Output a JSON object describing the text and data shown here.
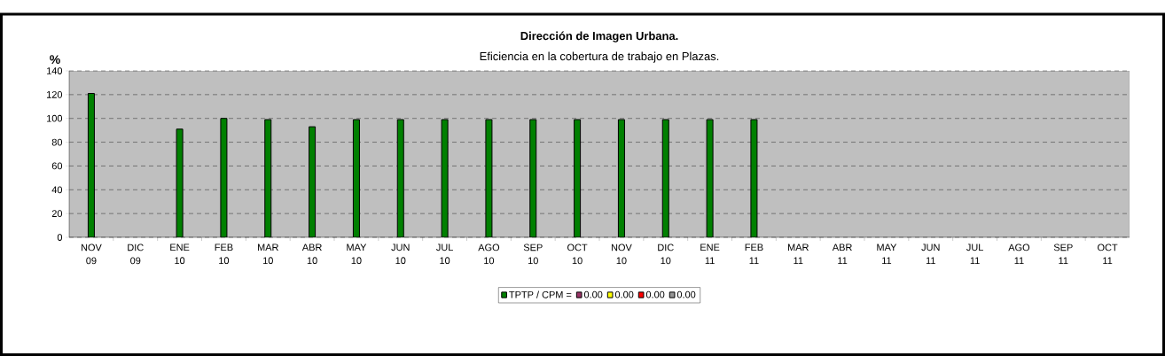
{
  "chart_data": {
    "type": "bar",
    "title": "Dirección de Imagen Urbana.",
    "subtitle": "Eficiencia en la cobertura de trabajo en Plazas.",
    "ylabel": "%",
    "categories": [
      "NOV 09",
      "DIC 09",
      "ENE 10",
      "FEB 10",
      "MAR 10",
      "ABR 10",
      "MAY 10",
      "JUN 10",
      "JUL 10",
      "AGO 10",
      "SEP 10",
      "OCT 10",
      "NOV 10",
      "DIC 10",
      "ENE 11",
      "FEB 11",
      "MAR 11",
      "ABR 11",
      "MAY 11",
      "JUN 11",
      "JUL 11",
      "AGO 11",
      "SEP 11",
      "OCT 11"
    ],
    "series": [
      {
        "name": "TPTP  / CPM =",
        "color": "#008000",
        "values": [
          121,
          null,
          91,
          100,
          99,
          93,
          99,
          99,
          99,
          99,
          99,
          99,
          99,
          99,
          99,
          99,
          null,
          null,
          null,
          null,
          null,
          null,
          null,
          null
        ]
      },
      {
        "name": "0.00",
        "color": "#993366",
        "values": [
          null,
          null,
          null,
          null,
          null,
          null,
          null,
          null,
          null,
          null,
          null,
          null,
          null,
          null,
          null,
          null,
          null,
          null,
          null,
          null,
          null,
          null,
          null,
          null
        ]
      },
      {
        "name": "0.00",
        "color": "#ffff00",
        "values": [
          null,
          null,
          null,
          null,
          null,
          null,
          null,
          null,
          null,
          null,
          null,
          null,
          null,
          null,
          null,
          null,
          null,
          null,
          null,
          null,
          null,
          null,
          null,
          null
        ]
      },
      {
        "name": "0.00",
        "color": "#ff0000",
        "values": [
          null,
          null,
          null,
          null,
          null,
          null,
          null,
          null,
          null,
          null,
          null,
          null,
          null,
          null,
          null,
          null,
          null,
          null,
          null,
          null,
          null,
          null,
          null,
          null
        ]
      },
      {
        "name": "0.00",
        "color": "#969696",
        "values": [
          null,
          null,
          null,
          null,
          null,
          null,
          null,
          null,
          null,
          null,
          null,
          null,
          null,
          null,
          null,
          null,
          null,
          null,
          null,
          null,
          null,
          null,
          null,
          null
        ]
      }
    ],
    "ylim": [
      0,
      140
    ],
    "yticks": [
      0,
      20,
      40,
      60,
      80,
      100,
      120,
      140
    ],
    "grid": "y",
    "legend": "bottom"
  }
}
